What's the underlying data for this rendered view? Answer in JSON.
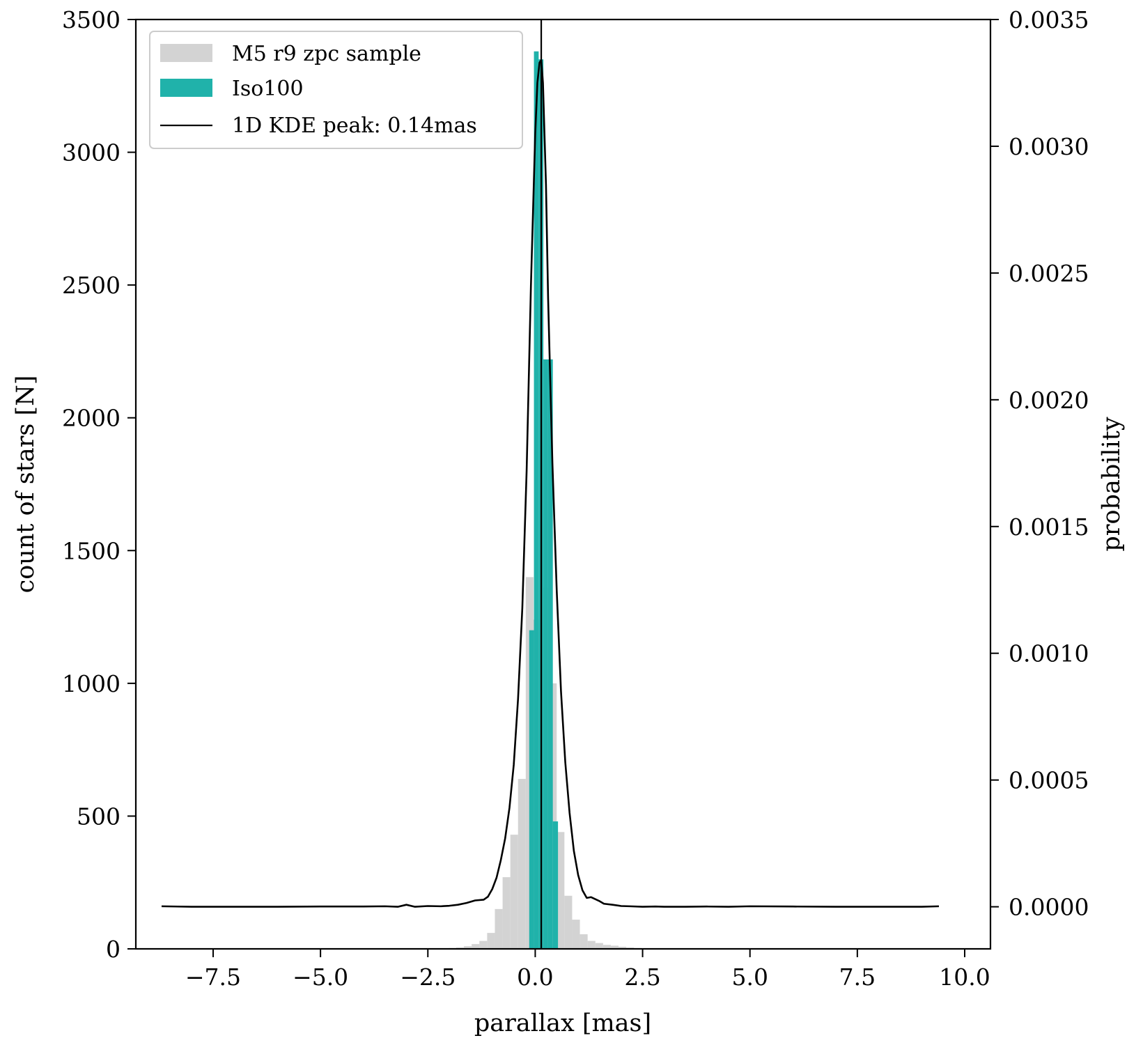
{
  "chart_data": {
    "type": "bar",
    "title": "",
    "xlabel": "parallax [mas]",
    "ylabel": "count of stars [N]",
    "y2label": "probability",
    "xlim": [
      -9.3,
      10.6
    ],
    "ylim": [
      0,
      3500
    ],
    "y2lim": [
      -0.000166,
      0.0035
    ],
    "xticks": [
      -7.5,
      -5.0,
      -2.5,
      0.0,
      2.5,
      5.0,
      7.5,
      10.0
    ],
    "xtick_labels": [
      "−7.5",
      "−5.0",
      "−2.5",
      "0.0",
      "2.5",
      "5.0",
      "7.5",
      "10.0"
    ],
    "yticks": [
      0,
      500,
      1000,
      1500,
      2000,
      2500,
      3000,
      3500
    ],
    "ytick_labels": [
      "0",
      "500",
      "1000",
      "1500",
      "2000",
      "2500",
      "3000",
      "3500"
    ],
    "y2ticks": [
      0.0,
      0.0005,
      0.001,
      0.0015,
      0.002,
      0.0025,
      0.003,
      0.0035
    ],
    "y2tick_labels": [
      "0.0000",
      "0.0005",
      "0.0010",
      "0.0015",
      "0.0020",
      "0.0025",
      "0.0030",
      "0.0035"
    ],
    "legend_position": "upper-left",
    "grid": false,
    "histograms": [
      {
        "name": "M5 r9 zpc sample",
        "color": "#d3d3d3",
        "bins": [
          {
            "x0": -2.37,
            "x1": -2.2,
            "count": 1
          },
          {
            "x0": -2.2,
            "x1": -2.02,
            "count": 2
          },
          {
            "x0": -2.02,
            "x1": -1.84,
            "count": 3
          },
          {
            "x0": -1.84,
            "x1": -1.66,
            "count": 5
          },
          {
            "x0": -1.66,
            "x1": -1.48,
            "count": 10
          },
          {
            "x0": -1.48,
            "x1": -1.3,
            "count": 18
          },
          {
            "x0": -1.3,
            "x1": -1.12,
            "count": 30
          },
          {
            "x0": -1.12,
            "x1": -0.94,
            "count": 60
          },
          {
            "x0": -0.94,
            "x1": -0.76,
            "count": 150
          },
          {
            "x0": -0.76,
            "x1": -0.58,
            "count": 270
          },
          {
            "x0": -0.58,
            "x1": -0.4,
            "count": 430
          },
          {
            "x0": -0.4,
            "x1": -0.22,
            "count": 640
          },
          {
            "x0": -0.22,
            "x1": -0.04,
            "count": 1400
          },
          {
            "x0": -0.04,
            "x1": 0.14,
            "count": 1240
          },
          {
            "x0": 0.14,
            "x1": 0.32,
            "count": 1360
          },
          {
            "x0": 0.32,
            "x1": 0.5,
            "count": 1000
          },
          {
            "x0": 0.5,
            "x1": 0.68,
            "count": 440
          },
          {
            "x0": 0.68,
            "x1": 0.86,
            "count": 200
          },
          {
            "x0": 0.86,
            "x1": 1.04,
            "count": 110
          },
          {
            "x0": 1.04,
            "x1": 1.22,
            "count": 55
          },
          {
            "x0": 1.22,
            "x1": 1.4,
            "count": 30
          },
          {
            "x0": 1.4,
            "x1": 1.58,
            "count": 22
          },
          {
            "x0": 1.58,
            "x1": 1.76,
            "count": 15
          },
          {
            "x0": 1.76,
            "x1": 1.94,
            "count": 12
          },
          {
            "x0": 1.94,
            "x1": 2.12,
            "count": 8
          },
          {
            "x0": 2.12,
            "x1": 2.3,
            "count": 5
          },
          {
            "x0": 2.3,
            "x1": 2.48,
            "count": 3
          },
          {
            "x0": 2.48,
            "x1": 2.66,
            "count": 2
          }
        ]
      },
      {
        "name": "Iso100",
        "color": "#20b2aa",
        "bins": [
          {
            "x0": -0.14,
            "x1": -0.03,
            "count": 1200
          },
          {
            "x0": -0.03,
            "x1": 0.08,
            "count": 3380
          },
          {
            "x0": 0.08,
            "x1": 0.19,
            "count": 3350
          },
          {
            "x0": 0.19,
            "x1": 0.3,
            "count": 2220
          },
          {
            "x0": 0.3,
            "x1": 0.41,
            "count": 2220
          },
          {
            "x0": 0.41,
            "x1": 0.53,
            "count": 480
          }
        ]
      }
    ],
    "kde": {
      "name": "1D KDE peak: 0.14mas",
      "color": "#000000",
      "axis": "right",
      "x": [
        -8.7,
        -8.0,
        -7.0,
        -6.0,
        -5.0,
        -4.0,
        -3.5,
        -3.2,
        -3.0,
        -2.8,
        -2.5,
        -2.2,
        -2.0,
        -1.8,
        -1.6,
        -1.4,
        -1.2,
        -1.1,
        -1.0,
        -0.9,
        -0.8,
        -0.7,
        -0.6,
        -0.5,
        -0.4,
        -0.3,
        -0.2,
        -0.1,
        0.0,
        0.05,
        0.1,
        0.14,
        0.18,
        0.25,
        0.3,
        0.4,
        0.5,
        0.6,
        0.7,
        0.8,
        0.9,
        1.0,
        1.1,
        1.2,
        1.3,
        1.4,
        1.5,
        1.6,
        1.8,
        2.0,
        2.2,
        2.5,
        2.8,
        3.0,
        3.5,
        4.0,
        4.5,
        5.0,
        6.0,
        7.0,
        8.0,
        9.0,
        9.4
      ],
      "y": [
        2e-06,
        0.0,
        0.0,
        0.0,
        1e-06,
        1e-06,
        2e-06,
        0.0,
        8e-06,
        0.0,
        3e-06,
        2e-06,
        4e-06,
        8e-06,
        1.5e-05,
        2.5e-05,
        2.8e-05,
        4e-05,
        7e-05,
        0.000115,
        0.000185,
        0.00027,
        0.00039,
        0.00056,
        0.00082,
        0.00118,
        0.00172,
        0.00245,
        0.00305,
        0.00325,
        0.00333,
        0.00334,
        0.00325,
        0.00285,
        0.0024,
        0.00175,
        0.00125,
        0.00085,
        0.00057,
        0.00037,
        0.00022,
        0.000125,
        6.5e-05,
        3.5e-05,
        3.8e-05,
        3e-05,
        2.2e-05,
        1.2e-05,
        8e-06,
        3e-06,
        2e-06,
        0.0,
        1e-06,
        0.0,
        0.0,
        1e-06,
        0.0,
        2e-06,
        1e-06,
        0.0,
        0.0,
        0.0,
        2e-06
      ]
    },
    "vline": {
      "x": 0.14,
      "color": "#000000"
    }
  }
}
